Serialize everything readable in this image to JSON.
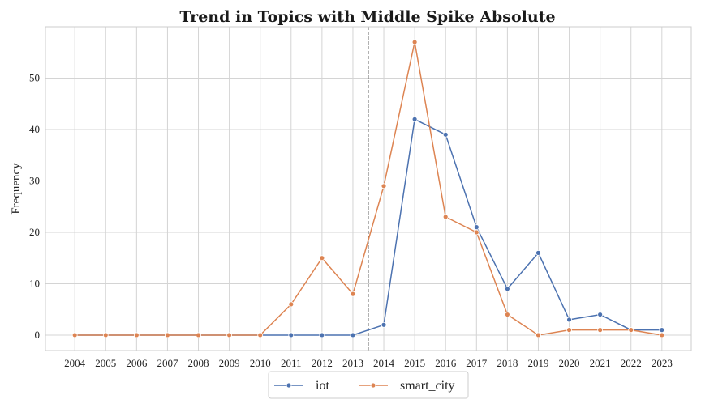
{
  "chart_data": {
    "type": "line",
    "title": "Trend in Topics with Middle Spike  Absolute",
    "xlabel": "",
    "ylabel": "Frequency",
    "x": [
      2004,
      2005,
      2006,
      2007,
      2008,
      2009,
      2010,
      2011,
      2012,
      2013,
      2014,
      2015,
      2016,
      2017,
      2018,
      2019,
      2020,
      2021,
      2022,
      2023
    ],
    "series": [
      {
        "name": "iot",
        "color": "#4c72b0",
        "values": [
          0,
          0,
          0,
          0,
          0,
          0,
          0,
          0,
          0,
          0,
          2,
          42,
          39,
          21,
          9,
          16,
          3,
          4,
          1,
          1
        ]
      },
      {
        "name": "smart_city",
        "color": "#dd8452",
        "values": [
          0,
          0,
          0,
          0,
          0,
          0,
          0,
          6,
          15,
          8,
          29,
          57,
          23,
          20,
          4,
          0,
          1,
          1,
          1,
          0
        ]
      }
    ],
    "ylim": [
      -3,
      60
    ],
    "yticks": [
      0,
      10,
      20,
      30,
      40,
      50
    ],
    "vline_x": 2013.5,
    "grid": true,
    "legend_position": "bottom-center"
  }
}
